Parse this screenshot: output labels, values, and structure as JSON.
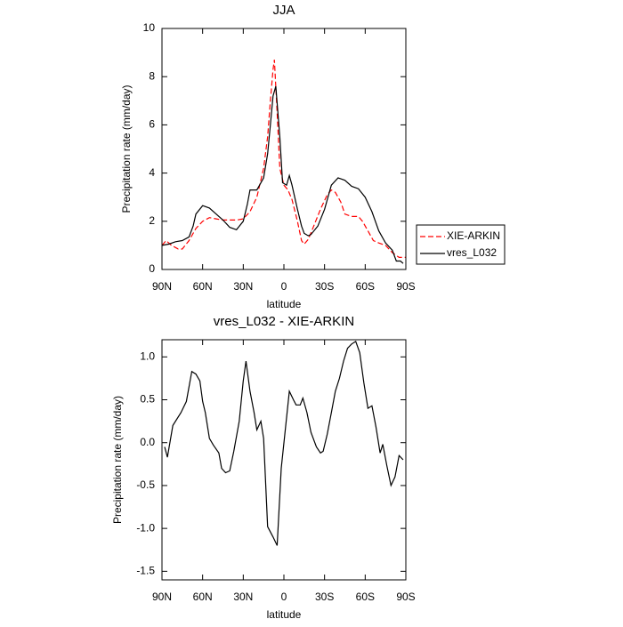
{
  "chart_data": [
    {
      "type": "line",
      "title": "JJA",
      "xlabel": "latitude",
      "ylabel": "Precipitation rate (mm/day)",
      "xlim": [
        90,
        -90
      ],
      "ylim": [
        0,
        10
      ],
      "xticks": [
        {
          "value": 90,
          "label": "90N"
        },
        {
          "value": 60,
          "label": "60N"
        },
        {
          "value": 30,
          "label": "30N"
        },
        0,
        {
          "value": -30,
          "label": "30S"
        },
        {
          "value": -60,
          "label": "60S"
        },
        {
          "value": -90,
          "label": "90S"
        }
      ],
      "yticks": [
        0,
        2,
        4,
        6,
        8,
        10
      ],
      "legend": "right",
      "series": [
        {
          "name": "XIE-ARKIN",
          "color": "#ff0000",
          "dash": true,
          "x": [
            90,
            87,
            83,
            78,
            75,
            70,
            65,
            60,
            55,
            50,
            45,
            40,
            35,
            30,
            25,
            20,
            15,
            12,
            10,
            8,
            7,
            5,
            3,
            0,
            -3,
            -6,
            -10,
            -13,
            -15,
            -18,
            -22,
            -27,
            -32,
            -35,
            -38,
            -42,
            -45,
            -50,
            -55,
            -58,
            -62,
            -66,
            -70,
            -75,
            -80,
            -85,
            -90
          ],
          "values": [
            1.0,
            1.2,
            1.0,
            0.85,
            0.85,
            1.2,
            1.7,
            2.0,
            2.15,
            2.1,
            2.05,
            2.05,
            2.05,
            2.1,
            2.4,
            3.0,
            4.2,
            5.5,
            7.0,
            8.3,
            8.7,
            6.5,
            4.2,
            3.5,
            3.3,
            2.9,
            2.0,
            1.2,
            1.05,
            1.25,
            1.8,
            2.5,
            3.1,
            3.3,
            3.2,
            2.8,
            2.3,
            2.2,
            2.2,
            2.0,
            1.6,
            1.2,
            1.1,
            1.0,
            0.7,
            0.5,
            0.5
          ]
        },
        {
          "name": "vres_L032",
          "color": "#000000",
          "dash": false,
          "x": [
            90,
            85,
            80,
            75,
            70,
            67,
            65,
            60,
            55,
            50,
            45,
            40,
            35,
            30,
            27,
            25,
            20,
            15,
            12,
            10,
            8,
            6,
            3,
            1,
            -2,
            -4,
            -6,
            -10,
            -13,
            -15,
            -18,
            -20,
            -25,
            -30,
            -35,
            -40,
            -45,
            -50,
            -55,
            -60,
            -65,
            -70,
            -75,
            -80,
            -83,
            -86,
            -88
          ],
          "values": [
            1.0,
            1.05,
            1.15,
            1.2,
            1.35,
            1.8,
            2.3,
            2.65,
            2.55,
            2.3,
            2.05,
            1.75,
            1.65,
            2.0,
            2.7,
            3.3,
            3.3,
            3.8,
            4.8,
            6.0,
            7.2,
            7.6,
            5.5,
            3.6,
            3.5,
            3.9,
            3.5,
            2.5,
            1.8,
            1.5,
            1.4,
            1.45,
            1.8,
            2.5,
            3.5,
            3.8,
            3.7,
            3.45,
            3.35,
            3.0,
            2.4,
            1.6,
            1.1,
            0.8,
            0.35,
            0.35,
            0.25
          ]
        }
      ]
    },
    {
      "type": "line",
      "title": "vres_L032 - XIE-ARKIN",
      "xlabel": "latitude",
      "ylabel": "Precipitation rate (mm/day)",
      "xlim": [
        90,
        -90
      ],
      "ylim": [
        -1.6,
        1.2
      ],
      "xticks": [
        {
          "value": 90,
          "label": "90N"
        },
        {
          "value": 60,
          "label": "60N"
        },
        {
          "value": 30,
          "label": "30N"
        },
        0,
        {
          "value": -30,
          "label": "30S"
        },
        {
          "value": -60,
          "label": "60S"
        },
        {
          "value": -90,
          "label": "90S"
        }
      ],
      "yticks": [
        -1.5,
        {
          "value": -1,
          "label": "-1.0"
        },
        -0.5,
        {
          "value": 0,
          "label": "0.0"
        },
        0.5,
        {
          "value": 1,
          "label": "1.0"
        }
      ],
      "series": [
        {
          "color": "#000000",
          "dash": false,
          "x": [
            88,
            86,
            82,
            76,
            72,
            68,
            65,
            62,
            60,
            58,
            55,
            52,
            48,
            46,
            43,
            40,
            37,
            33,
            30,
            28,
            25,
            22,
            20,
            17,
            15,
            12,
            8,
            5,
            2,
            -4,
            -7,
            -9,
            -12,
            -14,
            -17,
            -20,
            -24,
            -27,
            -29,
            -32,
            -35,
            -38,
            -41,
            -44,
            -47,
            -50,
            -53,
            -56,
            -59,
            -62,
            -65,
            -68,
            -71,
            -73,
            -76,
            -79,
            -82,
            -85,
            -88
          ],
          "values": [
            -0.05,
            -0.17,
            0.2,
            0.35,
            0.48,
            0.83,
            0.8,
            0.72,
            0.48,
            0.35,
            0.05,
            -0.03,
            -0.12,
            -0.3,
            -0.35,
            -0.33,
            -0.1,
            0.25,
            0.72,
            0.95,
            0.6,
            0.35,
            0.15,
            0.25,
            0.05,
            -0.98,
            -1.1,
            -1.2,
            -0.3,
            0.6,
            0.5,
            0.44,
            0.44,
            0.52,
            0.35,
            0.12,
            -0.05,
            -0.12,
            -0.1,
            0.1,
            0.35,
            0.6,
            0.75,
            0.95,
            1.1,
            1.15,
            1.18,
            1.05,
            0.7,
            0.4,
            0.43,
            0.18,
            -0.12,
            -0.02,
            -0.27,
            -0.5,
            -0.4,
            -0.15,
            -0.2
          ]
        }
      ]
    }
  ]
}
